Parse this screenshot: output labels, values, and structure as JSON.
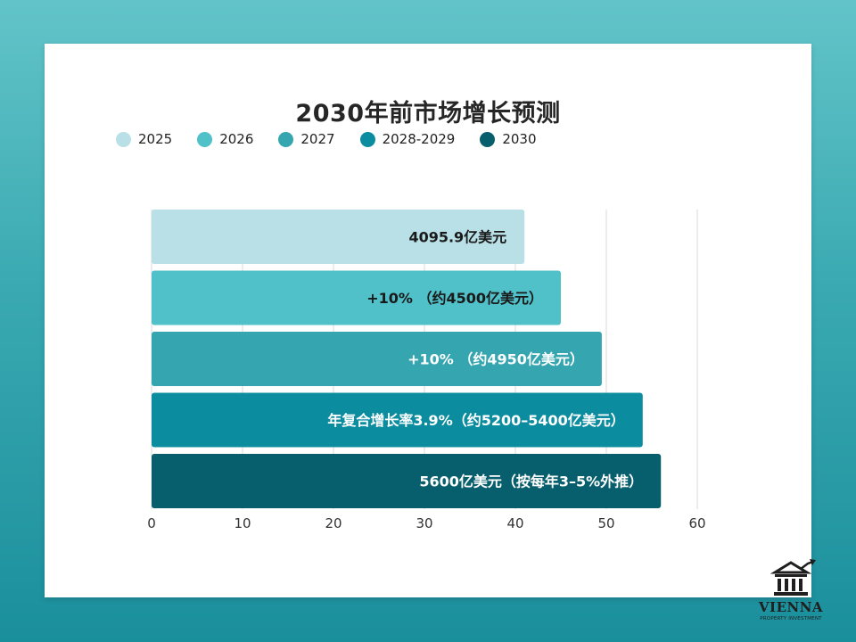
{
  "chart_data": {
    "type": "bar",
    "orientation": "horizontal",
    "title": "2030年前市场增长预测",
    "categories": [
      "2025",
      "2026",
      "2027",
      "2028-2029",
      "2030"
    ],
    "values": [
      41,
      45,
      49.5,
      54,
      56
    ],
    "data_labels": [
      "4095.9亿美元",
      "+10% （约4500亿美元）",
      "+10% （约4950亿美元）",
      "年复合增长率3.9%（约5200–5400亿美元）",
      "5600亿美元（按每年3–5%外推）"
    ],
    "colors": [
      "#b8e0e6",
      "#50c0c9",
      "#35a5af",
      "#0b8c9f",
      "#075e6c"
    ],
    "label_colors": [
      "#1a1a1a",
      "#1a1a1a",
      "#ffffff",
      "#ffffff",
      "#ffffff"
    ],
    "xlim": [
      0,
      60
    ],
    "xticks": [
      "0",
      "10",
      "20",
      "30",
      "40",
      "50",
      "60"
    ],
    "grid": true,
    "legend": "top"
  },
  "logo": {
    "name": "VIENNA",
    "subtitle": "PROPERTY INVESTMENT"
  }
}
